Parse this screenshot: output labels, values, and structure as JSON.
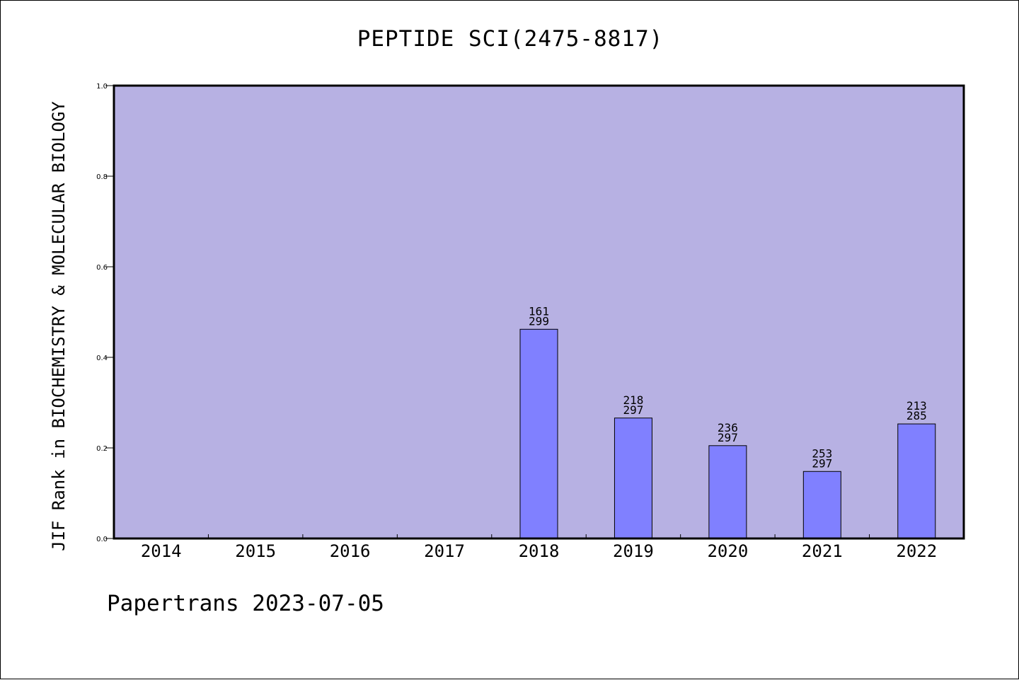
{
  "chart_data": {
    "type": "bar",
    "title": "PEPTIDE SCI(2475-8817)",
    "ylabel": "JIF Rank in BIOCHEMISTRY & MOLECULAR BIOLOGY",
    "xlabel": "",
    "categories": [
      "2014",
      "2015",
      "2016",
      "2017",
      "2018",
      "2019",
      "2020",
      "2021",
      "2022"
    ],
    "values": [
      null,
      null,
      null,
      null,
      0.462,
      0.266,
      0.205,
      0.148,
      0.253
    ],
    "bar_labels": [
      null,
      null,
      null,
      null,
      [
        "161",
        "299"
      ],
      [
        "218",
        "297"
      ],
      [
        "236",
        "297"
      ],
      [
        "253",
        "297"
      ],
      [
        "213",
        "285"
      ]
    ],
    "ylim": [
      0,
      1.0
    ],
    "yticks": [
      "0.0",
      "0.2",
      "0.4",
      "0.6",
      "0.8",
      "1.0"
    ],
    "grid": false,
    "colors": {
      "plot_background": "#b7b1e3",
      "bar_fill": "#8080ff",
      "bar_edge": "#000000",
      "axis": "#000000"
    }
  },
  "footer": "Papertrans 2023-07-05"
}
